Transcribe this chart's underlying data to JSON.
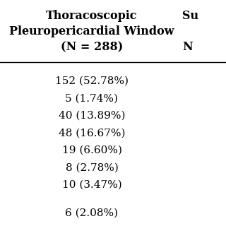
{
  "col1_header_line1": "Thoracoscopic",
  "col1_header_line2": "Pleuropericardial Window",
  "col1_header_line3": "(N = 288)",
  "col2_header_partial": "Su",
  "col2_subheader_partial": "N",
  "col1_values": [
    "152 (52.78%)",
    "5 (1.74%)",
    "40 (13.89%)",
    "48 (16.67%)",
    "19 (6.60%)",
    "8 (2.78%)",
    "10 (3.47%)",
    "",
    "6 (2.08%)"
  ],
  "header_fontsize": 11.5,
  "data_fontsize": 11.0,
  "background_color": "#ffffff",
  "text_color": "#000000"
}
